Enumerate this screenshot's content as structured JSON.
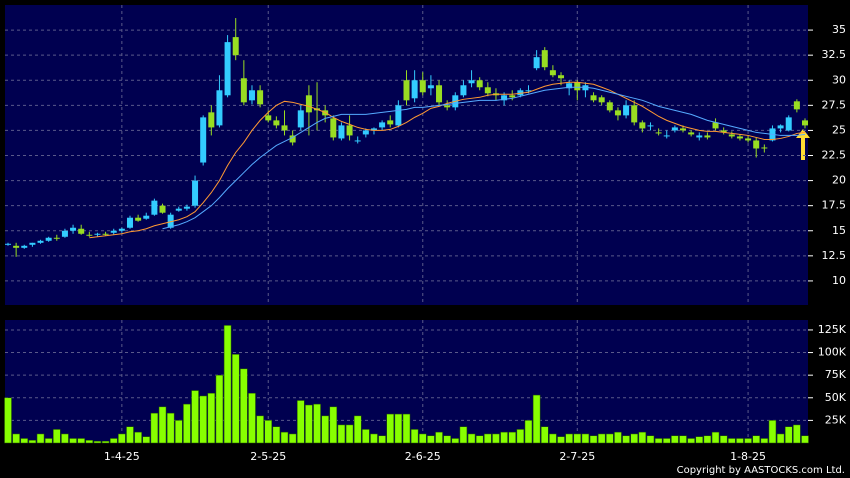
{
  "copyright": "Copyright by AASTOCKS.com Ltd.",
  "chart_data": [
    {
      "type": "candlestick",
      "up_color": "#33ccff",
      "down_color": "#99dd22",
      "open": [
        13.6,
        13.5,
        13.3,
        13.6,
        13.8,
        14.0,
        14.3,
        14.4,
        15.0,
        15.2,
        14.6,
        14.6,
        14.7,
        14.8,
        15.0,
        15.3,
        16.3,
        16.2,
        16.6,
        17.5,
        15.3,
        17.0,
        17.2,
        17.5,
        21.8,
        26.8,
        25.5,
        28.5,
        34.3,
        30.2,
        28.0,
        29.0,
        26.5,
        26.0,
        25.5,
        24.5,
        25.3,
        28.5,
        27.2,
        27.0,
        26.2,
        24.2,
        25.5,
        24.0,
        24.6,
        25.0,
        25.3,
        26.0,
        25.5,
        30.0,
        28.2,
        30.0,
        29.2,
        29.5,
        27.5,
        27.3,
        28.5,
        29.7,
        30.0,
        29.3,
        28.7,
        28.0,
        28.5,
        28.5,
        29.0,
        31.2,
        33.0,
        31.0,
        30.5,
        29.2,
        29.8,
        29.0,
        28.5,
        28.3,
        27.8,
        27.0,
        26.5,
        27.5,
        25.8,
        25.5,
        24.8,
        24.5,
        25.0,
        25.2,
        24.8,
        24.3,
        24.5,
        25.8,
        25.0,
        24.6,
        24.4,
        24.2,
        24.0,
        23.3,
        24.0,
        25.2,
        25.0,
        27.9,
        26.0
      ],
      "high": [
        13.8,
        13.8,
        13.6,
        13.8,
        14.1,
        14.4,
        14.6,
        15.2,
        15.6,
        15.6,
        14.9,
        14.8,
        14.9,
        15.2,
        15.3,
        16.5,
        16.6,
        16.8,
        18.2,
        17.7,
        16.8,
        17.4,
        17.6,
        20.5,
        26.5,
        27.5,
        30.5,
        34.5,
        36.2,
        32.0,
        29.5,
        29.5,
        27.0,
        26.4,
        27.0,
        25.0,
        27.5,
        29.5,
        29.8,
        27.5,
        26.5,
        25.8,
        26.5,
        24.4,
        25.2,
        25.3,
        26.0,
        26.5,
        28.0,
        31.0,
        31.0,
        30.8,
        30.5,
        30.0,
        28.0,
        28.8,
        30.0,
        31.0,
        30.3,
        29.8,
        29.2,
        28.8,
        29.0,
        29.2,
        29.5,
        33.0,
        33.3,
        31.5,
        30.8,
        30.0,
        30.0,
        29.8,
        28.8,
        28.5,
        28.0,
        27.3,
        28.0,
        28.0,
        26.0,
        25.8,
        25.2,
        25.0,
        25.5,
        25.5,
        25.0,
        24.8,
        24.8,
        26.2,
        25.3,
        24.9,
        24.6,
        24.5,
        24.3,
        23.6,
        25.5,
        25.6,
        26.5,
        28.1,
        26.2
      ],
      "low": [
        13.5,
        12.4,
        13.2,
        13.4,
        13.7,
        13.9,
        14.0,
        14.3,
        14.7,
        14.6,
        14.4,
        14.4,
        14.5,
        14.6,
        14.8,
        15.2,
        15.9,
        16.1,
        16.5,
        16.7,
        15.2,
        16.9,
        17.0,
        17.3,
        21.5,
        24.5,
        25.3,
        28.3,
        32.0,
        27.5,
        27.6,
        27.3,
        25.8,
        25.2,
        24.5,
        23.5,
        25.0,
        24.5,
        25.0,
        25.8,
        24.0,
        24.0,
        24.0,
        23.7,
        24.3,
        24.6,
        25.0,
        25.3,
        25.3,
        27.5,
        27.8,
        28.5,
        28.5,
        27.5,
        27.0,
        27.0,
        28.3,
        29.3,
        29.0,
        28.4,
        28.0,
        27.5,
        28.0,
        28.3,
        28.7,
        31.0,
        31.0,
        30.3,
        29.5,
        28.5,
        28.0,
        28.3,
        27.8,
        27.5,
        26.8,
        26.0,
        26.2,
        25.5,
        24.8,
        25.0,
        24.5,
        24.2,
        24.8,
        24.8,
        24.4,
        24.0,
        24.1,
        25.0,
        24.6,
        24.2,
        24.0,
        23.8,
        22.3,
        22.8,
        23.9,
        24.8,
        24.9,
        26.8,
        25.2
      ],
      "close": [
        13.7,
        13.3,
        13.5,
        13.8,
        14.0,
        14.3,
        14.2,
        15.0,
        15.3,
        14.7,
        14.5,
        14.7,
        14.6,
        15.0,
        15.2,
        16.3,
        16.0,
        16.5,
        18.0,
        16.8,
        16.6,
        17.2,
        17.4,
        20.0,
        26.3,
        25.3,
        29.0,
        33.8,
        32.5,
        27.8,
        29.0,
        27.6,
        26.0,
        25.5,
        25.0,
        23.8,
        27.0,
        26.8,
        27.0,
        26.5,
        24.3,
        25.5,
        24.5,
        24.0,
        25.0,
        25.2,
        25.8,
        25.6,
        27.5,
        28.0,
        30.0,
        28.8,
        29.5,
        27.8,
        27.3,
        28.5,
        29.5,
        30.0,
        29.3,
        28.7,
        28.5,
        28.5,
        28.3,
        29.0,
        29.0,
        32.3,
        31.3,
        30.5,
        30.2,
        29.7,
        29.0,
        29.5,
        28.0,
        27.8,
        27.0,
        26.5,
        27.5,
        25.8,
        25.2,
        25.5,
        24.7,
        24.5,
        25.3,
        25.0,
        24.6,
        24.5,
        24.3,
        25.2,
        24.8,
        24.4,
        24.2,
        24.0,
        23.2,
        23.2,
        25.2,
        25.5,
        26.3,
        27.1,
        25.5
      ],
      "series": [
        {
          "color": "#ff9933",
          "values": [
            null,
            null,
            null,
            null,
            null,
            null,
            null,
            null,
            null,
            null,
            14.3,
            14.4,
            14.5,
            14.6,
            14.7,
            14.9,
            15.0,
            15.2,
            15.5,
            15.7,
            15.9,
            16.1,
            16.4,
            16.9,
            17.8,
            18.8,
            20.0,
            21.5,
            22.8,
            23.8,
            25.0,
            26.0,
            26.8,
            27.5,
            27.9,
            27.8,
            27.6,
            27.4,
            27.1,
            26.8,
            26.3,
            25.9,
            25.6,
            25.3,
            25.1,
            25.0,
            25.0,
            25.1,
            25.4,
            25.8,
            26.3,
            26.7,
            27.2,
            27.4,
            27.7,
            27.9,
            28.1,
            28.2,
            28.3,
            28.5,
            28.6,
            28.6,
            28.6,
            28.7,
            28.8,
            29.1,
            29.4,
            29.6,
            29.7,
            29.8,
            29.8,
            29.7,
            29.6,
            29.3,
            29.0,
            28.6,
            28.2,
            27.8,
            27.4,
            26.9,
            26.4,
            26.0,
            25.7,
            25.4,
            25.2,
            25.0,
            24.9,
            24.9,
            24.8,
            24.7,
            24.6,
            24.5,
            24.3,
            24.1,
            24.1,
            24.2,
            24.4,
            24.7,
            24.8
          ]
        },
        {
          "color": "#55aaff",
          "values": [
            null,
            null,
            null,
            null,
            null,
            null,
            null,
            null,
            null,
            null,
            null,
            null,
            null,
            null,
            null,
            null,
            null,
            null,
            null,
            15.2,
            15.4,
            15.6,
            15.9,
            16.3,
            16.9,
            17.5,
            18.3,
            19.2,
            20.0,
            20.8,
            21.6,
            22.3,
            22.9,
            23.5,
            23.9,
            24.3,
            24.8,
            25.3,
            25.8,
            26.2,
            26.4,
            26.6,
            26.6,
            26.6,
            26.6,
            26.7,
            26.8,
            26.9,
            27.0,
            27.1,
            27.3,
            27.3,
            27.4,
            27.5,
            27.6,
            27.7,
            27.8,
            27.9,
            28.0,
            28.0,
            28.0,
            28.1,
            28.2,
            28.4,
            28.6,
            28.8,
            29.0,
            29.1,
            29.2,
            29.3,
            29.3,
            29.3,
            29.2,
            29.0,
            28.8,
            28.6,
            28.4,
            28.2,
            28.0,
            27.7,
            27.4,
            27.2,
            27.0,
            26.8,
            26.6,
            26.3,
            26.0,
            25.8,
            25.6,
            25.4,
            25.2,
            25.0,
            24.8,
            24.7,
            24.6,
            24.5,
            24.5,
            24.5,
            24.6
          ]
        }
      ],
      "ylim": [
        7.6,
        37.5
      ],
      "yticks": [
        10,
        12.5,
        15,
        17.5,
        20,
        22.5,
        25,
        27.5,
        30,
        32.5,
        35
      ],
      "grid": true
    },
    {
      "type": "bar",
      "color": "#88ff00",
      "categories": [
        null,
        null,
        null,
        null,
        null,
        null,
        null,
        null,
        null,
        null,
        null,
        null,
        null,
        null,
        "1-4-25",
        null,
        null,
        null,
        null,
        null,
        null,
        null,
        null,
        null,
        null,
        null,
        null,
        null,
        null,
        null,
        null,
        null,
        "2-5-25",
        null,
        null,
        null,
        null,
        null,
        null,
        null,
        null,
        null,
        null,
        null,
        null,
        null,
        null,
        null,
        null,
        null,
        null,
        "2-6-25",
        null,
        null,
        null,
        null,
        null,
        null,
        null,
        null,
        null,
        null,
        null,
        null,
        null,
        null,
        null,
        null,
        null,
        null,
        "2-7-25",
        null,
        null,
        null,
        null,
        null,
        null,
        null,
        null,
        null,
        null,
        null,
        null,
        null,
        null,
        null,
        null,
        null,
        null,
        null,
        null,
        "1-8-25",
        null,
        null,
        null,
        null,
        null,
        null,
        null
      ],
      "values": [
        50000,
        10000,
        5000,
        3000,
        10000,
        5000,
        15000,
        10000,
        5000,
        5000,
        3000,
        2000,
        2000,
        5000,
        10000,
        18000,
        12000,
        7000,
        33000,
        40000,
        33000,
        25000,
        43000,
        58000,
        52000,
        55000,
        75000,
        130000,
        98000,
        82000,
        55000,
        30000,
        25000,
        18000,
        12000,
        10000,
        47000,
        42000,
        43000,
        30000,
        40000,
        20000,
        20000,
        30000,
        15000,
        10000,
        8000,
        32000,
        32000,
        32000,
        15000,
        10000,
        8000,
        12000,
        8000,
        5000,
        18000,
        10000,
        8000,
        10000,
        10000,
        12000,
        12000,
        15000,
        25000,
        53000,
        18000,
        10000,
        7000,
        10000,
        10000,
        10000,
        8000,
        10000,
        10000,
        12000,
        8000,
        10000,
        12000,
        8000,
        5000,
        5000,
        8000,
        8000,
        5000,
        7000,
        8000,
        12000,
        8000,
        5000,
        5000,
        5000,
        8000,
        5000,
        25000,
        10000,
        18000,
        20000,
        8000
      ],
      "ylim": [
        0,
        136000
      ],
      "yticks": [
        {
          "value": 25000,
          "label": "25K"
        },
        {
          "value": 50000,
          "label": "50K"
        },
        {
          "value": 75000,
          "label": "75K"
        },
        {
          "value": 100000,
          "label": "100K"
        },
        {
          "value": 125000,
          "label": "125K"
        }
      ],
      "grid": true
    }
  ]
}
